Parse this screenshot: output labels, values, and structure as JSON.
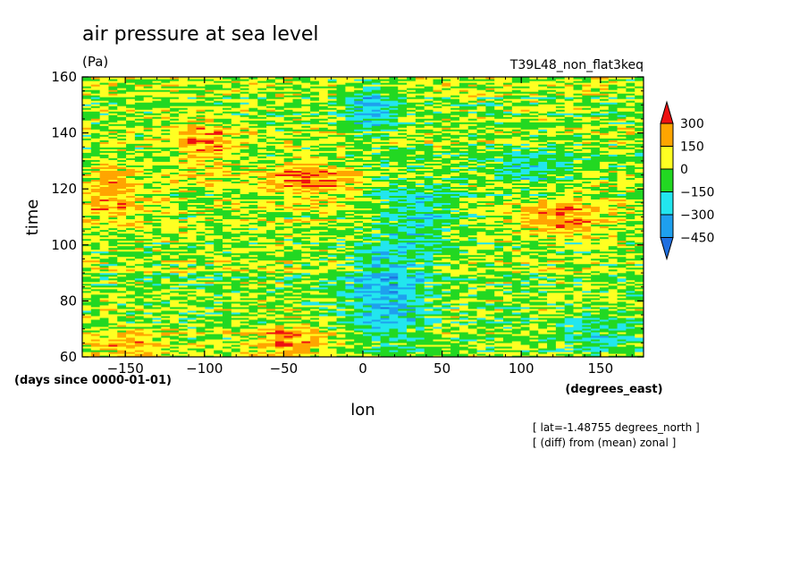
{
  "chart_data": {
    "type": "heatmap",
    "title": "air pressure at sea level",
    "units": "(Pa)",
    "experiment": "T39L48_non_flat3keq",
    "xlabel": "lon",
    "xunits": "(degrees_east)",
    "ylabel": "time",
    "yunits": "(days since 0000-01-01)",
    "xlim": [
      -177.1875,
      177.1875
    ],
    "ylim": [
      60,
      160
    ],
    "x_ticks": [
      -150,
      -100,
      -50,
      0,
      50,
      100,
      150
    ],
    "y_ticks": [
      60,
      80,
      100,
      120,
      140,
      160
    ],
    "notes": [
      "[ lat=-1.48755 degrees_north ]",
      "[ (diff) from (mean) zonal ]"
    ],
    "colorbar": {
      "levels": [
        -450,
        -300,
        -150,
        0,
        150,
        300
      ],
      "labels": [
        "300",
        "150",
        "0",
        "-150",
        "-300",
        "-450"
      ],
      "colors": [
        "#1f6fe0",
        "#1ea0ee",
        "#22e6ee",
        "#22d822",
        "#ffff22",
        "#ffa500",
        "#ee1111"
      ]
    },
    "anomaly_regions": [
      {
        "lon_range": [
          -60,
          -10
        ],
        "time_range": [
          118,
          130
        ],
        "sign": "positive",
        "magnitude": 280
      },
      {
        "lon_range": [
          -120,
          -80
        ],
        "time_range": [
          125,
          145
        ],
        "sign": "positive",
        "magnitude": 220
      },
      {
        "lon_range": [
          -175,
          -140
        ],
        "time_range": [
          108,
          128
        ],
        "sign": "positive",
        "magnitude": 220
      },
      {
        "lon_range": [
          -70,
          -20
        ],
        "time_range": [
          60,
          72
        ],
        "sign": "positive",
        "magnitude": 260
      },
      {
        "lon_range": [
          -175,
          -120
        ],
        "time_range": [
          60,
          70
        ],
        "sign": "positive",
        "magnitude": 200
      },
      {
        "lon_range": [
          100,
          150
        ],
        "time_range": [
          104,
          116
        ],
        "sign": "positive",
        "magnitude": 260
      },
      {
        "lon_range": [
          -10,
          40
        ],
        "time_range": [
          65,
          100
        ],
        "sign": "negative",
        "magnitude": 320
      },
      {
        "lon_range": [
          -10,
          20
        ],
        "time_range": [
          140,
          158
        ],
        "sign": "negative",
        "magnitude": 320
      },
      {
        "lon_range": [
          10,
          60
        ],
        "time_range": [
          100,
          125
        ],
        "sign": "negative",
        "magnitude": 220
      },
      {
        "lon_range": [
          80,
          130
        ],
        "time_range": [
          120,
          135
        ],
        "sign": "negative",
        "magnitude": 200
      },
      {
        "lon_range": [
          120,
          177
        ],
        "time_range": [
          60,
          75
        ],
        "sign": "negative",
        "magnitude": 180
      }
    ]
  }
}
